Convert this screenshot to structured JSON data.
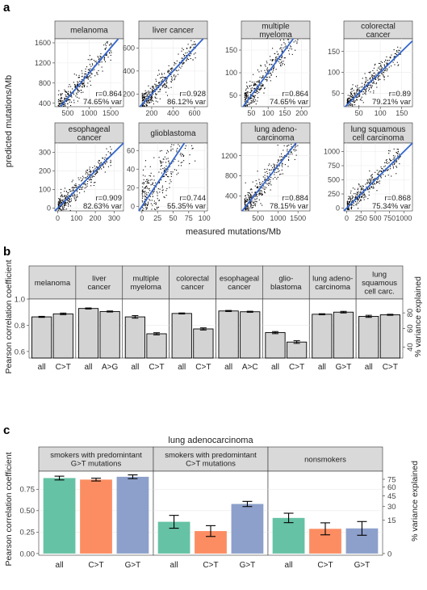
{
  "chart_data": [
    {
      "panel": "a",
      "type": "scatter",
      "xlabel": "measured mutations/Mb",
      "ylabel": "predicted mutations/Mb",
      "line_color": "#3366cc",
      "panels": [
        {
          "title": "melanoma",
          "xticks": [
            "500",
            "1000",
            "1500"
          ],
          "xlim": [
            200,
            1800
          ],
          "yticks": [
            "400",
            "800",
            "1200",
            "1600"
          ],
          "ylim": [
            330,
            1680
          ],
          "r": "r=0.864",
          "var": "74.65% var"
        },
        {
          "title": "liver cancer",
          "xticks": [
            "200",
            "400",
            "600"
          ],
          "xlim": [
            80,
            720
          ],
          "yticks": [
            "200",
            "400",
            "600"
          ],
          "ylim": [
            90,
            680
          ],
          "r": "r=0.928",
          "var": "86.12% var"
        },
        {
          "title": "multiple myeloma",
          "xticks": [
            "50",
            "100",
            "150",
            "200"
          ],
          "xlim": [
            20,
            225
          ],
          "yticks": [
            "50",
            "100",
            "150"
          ],
          "ylim": [
            25,
            175
          ],
          "r": "r=0.864",
          "var": "74.65% var"
        },
        {
          "title": "colorectal cancer",
          "xticks": [
            "50",
            "100",
            "150"
          ],
          "xlim": [
            15,
            175
          ],
          "yticks": [
            "50",
            "100",
            "150"
          ],
          "ylim": [
            18,
            180
          ],
          "r": "r=0.89",
          "var": "79.21% var"
        },
        {
          "title": "esophageal cancer",
          "xticks": [
            "0",
            "100",
            "200",
            "300"
          ],
          "xlim": [
            -15,
            350
          ],
          "yticks": [
            "0",
            "100",
            "200",
            "300"
          ],
          "ylim": [
            -15,
            350
          ],
          "r": "r=0.909",
          "var": "82.63% var"
        },
        {
          "title": "glioblastoma",
          "xticks": [
            "0",
            "25",
            "50",
            "75",
            "100"
          ],
          "xlim": [
            -5,
            105
          ],
          "yticks": [
            "0",
            "20",
            "40",
            "60"
          ],
          "ylim": [
            -5,
            68
          ],
          "r": "r=0.744",
          "var": "55.35% var"
        },
        {
          "title": "lung adeno-carcinoma",
          "xticks": [
            "500",
            "1000",
            "1500"
          ],
          "xlim": [
            80,
            1800
          ],
          "yticks": [
            "400",
            "800",
            "1200"
          ],
          "ylim": [
            100,
            1450
          ],
          "r": "r=0.884",
          "var": "78.15% var"
        },
        {
          "title": "lung squamous cell carcinoma",
          "xticks": [
            "0",
            "250",
            "500",
            "750",
            "1000"
          ],
          "xlim": [
            -50,
            1150
          ],
          "yticks": [
            "0",
            "250",
            "500",
            "750",
            "1000"
          ],
          "ylim": [
            -50,
            1150
          ],
          "r": "r=0.868",
          "var": "75.34% var"
        }
      ]
    },
    {
      "panel": "b",
      "type": "bar",
      "ylabel": "Pearson correlation coefficient",
      "y2label": "% variance explained",
      "yticks": [
        "0.6",
        "0.8",
        "1.0"
      ],
      "ylim": [
        0.55,
        1.0
      ],
      "y2ticks": [
        "40",
        "60",
        "80"
      ],
      "bar_color": "#d3d3d3",
      "groups": [
        {
          "title": "melanoma",
          "bars": [
            {
              "label": "all",
              "value": 0.864,
              "err": 0.004
            },
            {
              "label": "C>T",
              "value": 0.887,
              "err": 0.006
            }
          ]
        },
        {
          "title": "liver cancer",
          "bars": [
            {
              "label": "all",
              "value": 0.928,
              "err": 0.004
            },
            {
              "label": "A>G",
              "value": 0.905,
              "err": 0.004
            }
          ]
        },
        {
          "title": "multiple myeloma",
          "bars": [
            {
              "label": "all",
              "value": 0.864,
              "err": 0.01
            },
            {
              "label": "C>T",
              "value": 0.735,
              "err": 0.008
            }
          ]
        },
        {
          "title": "colorectal cancer",
          "bars": [
            {
              "label": "all",
              "value": 0.89,
              "err": 0.004
            },
            {
              "label": "C>T",
              "value": 0.772,
              "err": 0.008
            }
          ]
        },
        {
          "title": "esophageal cancer",
          "bars": [
            {
              "label": "all",
              "value": 0.909,
              "err": 0.004
            },
            {
              "label": "A>C",
              "value": 0.903,
              "err": 0.004
            }
          ]
        },
        {
          "title": "glio-blastoma",
          "bars": [
            {
              "label": "all",
              "value": 0.744,
              "err": 0.008
            },
            {
              "label": "C>T",
              "value": 0.672,
              "err": 0.01
            }
          ]
        },
        {
          "title": "lung adeno-carcinoma",
          "bars": [
            {
              "label": "all",
              "value": 0.884,
              "err": 0.004
            },
            {
              "label": "G>T",
              "value": 0.9,
              "err": 0.006
            }
          ]
        },
        {
          "title": "lung squamous cell carc.",
          "bars": [
            {
              "label": "all",
              "value": 0.868,
              "err": 0.008
            },
            {
              "label": "C>T",
              "value": 0.88,
              "err": 0.004
            }
          ]
        }
      ]
    },
    {
      "panel": "c",
      "type": "bar",
      "title": "lung adenocarcinoma",
      "ylabel": "Pearson correlation coefficient",
      "y2label": "% variance explained",
      "yticks": [
        "0.00",
        "0.25",
        "0.50",
        "0.75"
      ],
      "ylim": [
        -0.02,
        0.96
      ],
      "y2ticks": [
        "0",
        "15",
        "30",
        "45",
        "60",
        "75"
      ],
      "colors": {
        "all": "#66c2a5",
        "C>T": "#fc8d62",
        "G>T": "#8da0cb"
      },
      "groups": [
        {
          "title": "smokers with predomintant G>T mutations",
          "bars": [
            {
              "label": "all",
              "value": 0.88,
              "err": 0.022
            },
            {
              "label": "C>T",
              "value": 0.862,
              "err": 0.016
            },
            {
              "label": "G>T",
              "value": 0.895,
              "err": 0.022
            }
          ]
        },
        {
          "title": "smokers with predomintant C>T mutations",
          "bars": [
            {
              "label": "all",
              "value": 0.37,
              "err": 0.075
            },
            {
              "label": "C>T",
              "value": 0.262,
              "err": 0.063
            },
            {
              "label": "G>T",
              "value": 0.578,
              "err": 0.03
            }
          ]
        },
        {
          "title": "nonsmokers",
          "bars": [
            {
              "label": "all",
              "value": 0.415,
              "err": 0.055
            },
            {
              "label": "C>T",
              "value": 0.288,
              "err": 0.07
            },
            {
              "label": "G>T",
              "value": 0.293,
              "err": 0.08
            }
          ]
        }
      ]
    }
  ]
}
